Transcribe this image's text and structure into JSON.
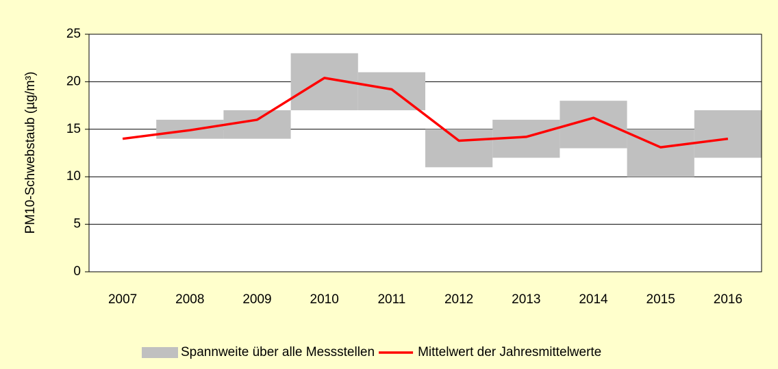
{
  "chart_data": {
    "type": "combo",
    "ylabel": "PM10-Schwebstaub (µg/m³)",
    "categories": [
      "2007",
      "2008",
      "2009",
      "2010",
      "2011",
      "2012",
      "2013",
      "2014",
      "2015",
      "2016"
    ],
    "series": [
      {
        "name": "Spannweite über alle Messstellen",
        "type": "range",
        "color": "#c0c0c0",
        "low": [
          null,
          14,
          14,
          17,
          17,
          11,
          12,
          13,
          10,
          12
        ],
        "high": [
          null,
          16,
          17,
          23,
          21,
          15,
          16,
          18,
          15,
          17
        ]
      },
      {
        "name": "Mittelwert der Jahresmittelwerte",
        "type": "line",
        "color": "#ff0000",
        "values": [
          14,
          14.9,
          16,
          20.4,
          19.2,
          13.8,
          14.2,
          16.2,
          13.1,
          14
        ]
      }
    ],
    "ylim": [
      0,
      25
    ],
    "yticks": [
      0,
      5,
      10,
      15,
      20,
      25
    ],
    "grid": true,
    "legend": "bottom"
  }
}
